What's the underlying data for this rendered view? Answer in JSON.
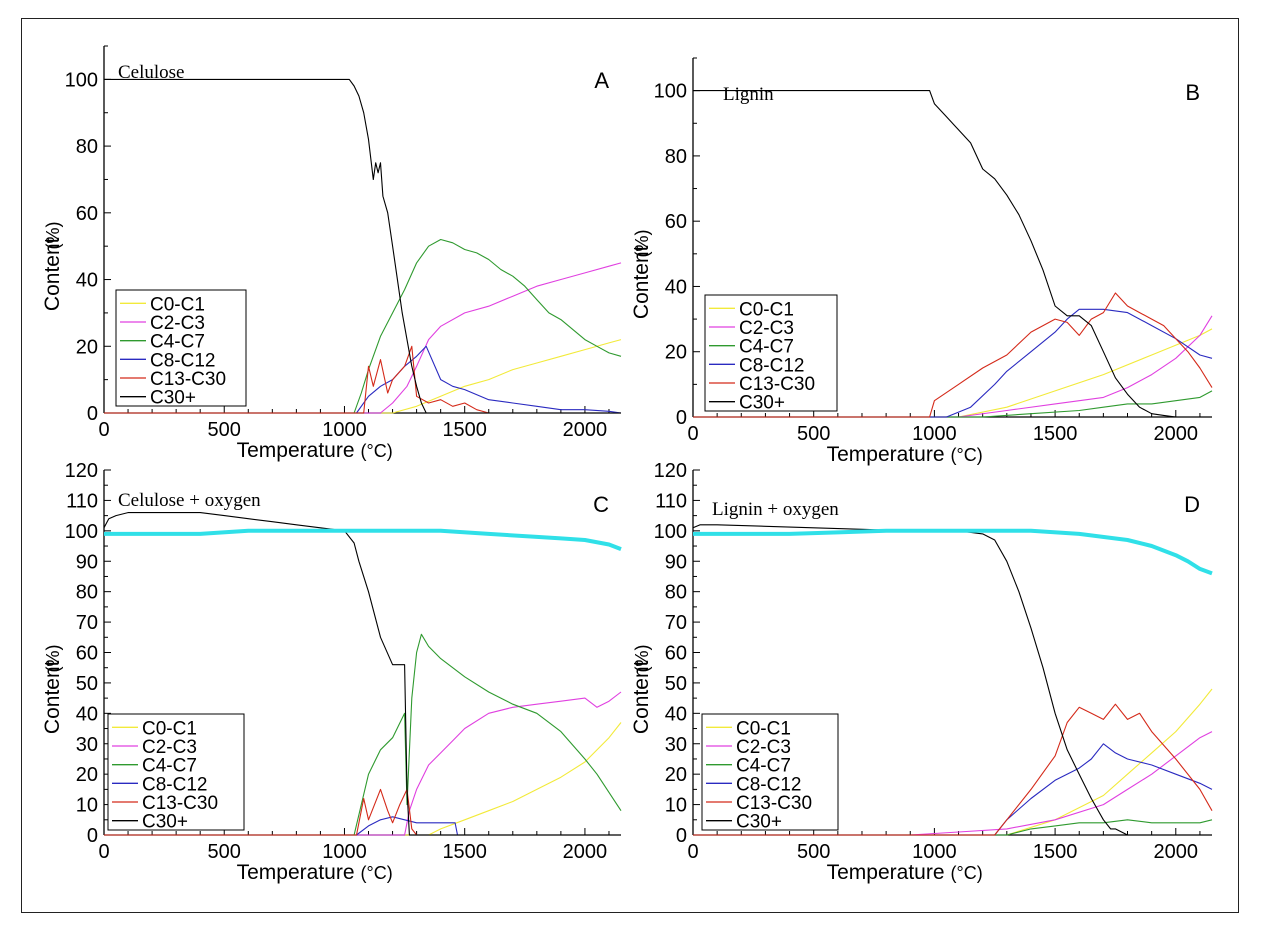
{
  "colors": {
    "C0-C1": "#f2ea3a",
    "C2-C3": "#e040e0",
    "C4-C7": "#2f9a2f",
    "C8-C12": "#2a2ac0",
    "C13-C30": "#d42a1a",
    "C30+": "#000000",
    "oxygen": "#30e0e8"
  },
  "chart_data": [
    {
      "panel": "A",
      "type": "line",
      "title": "Celulose",
      "xlabel": "Temperature",
      "xunit": "(°C)",
      "ylabel": "Content",
      "yunit": "(%)",
      "xlim": [
        0,
        2150
      ],
      "ylim": [
        0,
        110
      ],
      "xticks": [
        0,
        500,
        1000,
        1500,
        2000
      ],
      "yticks": [
        0,
        20,
        40,
        60,
        80,
        100
      ],
      "legend": "bottom-left",
      "series": [
        {
          "name": "C0-C1",
          "x": [
            0,
            1200,
            1300,
            1400,
            1500,
            1600,
            1700,
            1800,
            1900,
            2000,
            2100,
            2150
          ],
          "y": [
            0,
            0,
            2,
            5,
            8,
            10,
            13,
            15,
            17,
            19,
            21,
            22
          ]
        },
        {
          "name": "C2-C3",
          "x": [
            0,
            1150,
            1200,
            1260,
            1300,
            1350,
            1400,
            1500,
            1600,
            1700,
            1800,
            1900,
            2000,
            2100,
            2150
          ],
          "y": [
            0,
            0,
            3,
            8,
            14,
            22,
            26,
            30,
            32,
            35,
            38,
            40,
            42,
            44,
            45
          ]
        },
        {
          "name": "C4-C7",
          "x": [
            0,
            1040,
            1070,
            1100,
            1150,
            1200,
            1250,
            1300,
            1350,
            1400,
            1450,
            1500,
            1550,
            1600,
            1650,
            1700,
            1750,
            1800,
            1850,
            1900,
            1950,
            2000,
            2050,
            2100,
            2150
          ],
          "y": [
            0,
            0,
            6,
            13,
            23,
            30,
            37,
            45,
            50,
            52,
            51,
            49,
            48,
            46,
            43,
            41,
            38,
            34,
            30,
            28,
            25,
            22,
            20,
            18,
            17
          ]
        },
        {
          "name": "C8-C12",
          "x": [
            0,
            1050,
            1100,
            1150,
            1200,
            1250,
            1300,
            1340,
            1400,
            1450,
            1500,
            1600,
            1700,
            1800,
            1900,
            2000,
            2100,
            2150
          ],
          "y": [
            0,
            0,
            5,
            8,
            10,
            14,
            17,
            20,
            10,
            8,
            7,
            4,
            3,
            2,
            1,
            1,
            0.5,
            0
          ]
        },
        {
          "name": "C13-C30",
          "x": [
            0,
            1080,
            1100,
            1120,
            1150,
            1180,
            1200,
            1250,
            1280,
            1300,
            1350,
            1400,
            1450,
            1500,
            1550,
            1600,
            2150
          ],
          "y": [
            0,
            0,
            14,
            8,
            16,
            6,
            10,
            14,
            20,
            5,
            3,
            4,
            2,
            3,
            1,
            0,
            0
          ]
        },
        {
          "name": "C30+",
          "x": [
            0,
            1020,
            1040,
            1060,
            1080,
            1100,
            1120,
            1130,
            1140,
            1150,
            1160,
            1180,
            1200,
            1220,
            1240,
            1260,
            1280,
            1300,
            1320,
            1340,
            2150
          ],
          "y": [
            100,
            100,
            98,
            95,
            90,
            82,
            70,
            75,
            72,
            75,
            65,
            60,
            50,
            40,
            30,
            22,
            14,
            8,
            3,
            0,
            0
          ]
        }
      ]
    },
    {
      "panel": "B",
      "type": "line",
      "title": "Lignin",
      "xlabel": "Temperature",
      "xunit": "(°C)",
      "ylabel": "Content",
      "yunit": "(%)",
      "xlim": [
        0,
        2150
      ],
      "ylim": [
        0,
        110
      ],
      "xticks": [
        0,
        500,
        1000,
        1500,
        2000
      ],
      "yticks": [
        0,
        20,
        40,
        60,
        80,
        100
      ],
      "legend": "bottom-left",
      "series": [
        {
          "name": "C0-C1",
          "x": [
            0,
            1100,
            1300,
            1500,
            1700,
            1900,
            2100,
            2150
          ],
          "y": [
            0,
            0,
            3,
            8,
            13,
            19,
            25,
            27
          ]
        },
        {
          "name": "C2-C3",
          "x": [
            0,
            1100,
            1300,
            1500,
            1700,
            1800,
            1900,
            2000,
            2100,
            2150
          ],
          "y": [
            0,
            0,
            2,
            4,
            6,
            9,
            13,
            18,
            25,
            31
          ]
        },
        {
          "name": "C4-C7",
          "x": [
            0,
            1200,
            1400,
            1600,
            1700,
            1800,
            1900,
            2000,
            2100,
            2150
          ],
          "y": [
            0,
            0,
            1,
            2,
            3,
            4,
            4,
            5,
            6,
            8
          ]
        },
        {
          "name": "C8-C12",
          "x": [
            0,
            1050,
            1150,
            1250,
            1300,
            1400,
            1500,
            1550,
            1600,
            1700,
            1800,
            1900,
            2000,
            2100,
            2150
          ],
          "y": [
            0,
            0,
            3,
            10,
            14,
            20,
            26,
            30,
            33,
            33,
            32,
            28,
            24,
            19,
            18
          ]
        },
        {
          "name": "C13-C30",
          "x": [
            0,
            980,
            1000,
            1100,
            1200,
            1300,
            1400,
            1500,
            1550,
            1600,
            1650,
            1700,
            1750,
            1800,
            1850,
            1900,
            1950,
            2000,
            2050,
            2100,
            2150
          ],
          "y": [
            0,
            0,
            5,
            10,
            15,
            19,
            26,
            30,
            29,
            25,
            30,
            32,
            38,
            34,
            32,
            30,
            28,
            24,
            20,
            15,
            9
          ]
        },
        {
          "name": "C30+",
          "x": [
            0,
            980,
            1000,
            1050,
            1100,
            1150,
            1200,
            1250,
            1300,
            1350,
            1400,
            1450,
            1500,
            1550,
            1600,
            1650,
            1700,
            1750,
            1800,
            1850,
            1900,
            1950,
            2000,
            2150
          ],
          "y": [
            100,
            100,
            96,
            92,
            88,
            84,
            76,
            73,
            68,
            62,
            54,
            45,
            34,
            31,
            31,
            28,
            20,
            12,
            7,
            3,
            1,
            0.5,
            0,
            0
          ]
        }
      ]
    },
    {
      "panel": "C",
      "type": "line",
      "title": "Celulose + oxygen",
      "xlabel": "Temperature",
      "xunit": "(°C)",
      "ylabel": "Content",
      "yunit": "(%)",
      "xlim": [
        0,
        2150
      ],
      "ylim": [
        0,
        120
      ],
      "xticks": [
        0,
        500,
        1000,
        1500,
        2000
      ],
      "yticks": [
        0,
        10,
        20,
        30,
        40,
        50,
        60,
        70,
        80,
        90,
        100,
        110,
        120
      ],
      "legend": "bottom-left",
      "series": [
        {
          "name": "C0-C1",
          "x": [
            0,
            1350,
            1400,
            1500,
            1600,
            1700,
            1800,
            1900,
            2000,
            2100,
            2150
          ],
          "y": [
            0,
            0,
            2,
            5,
            8,
            11,
            15,
            19,
            24,
            32,
            37
          ]
        },
        {
          "name": "C2-C3",
          "x": [
            0,
            1250,
            1270,
            1300,
            1350,
            1400,
            1450,
            1500,
            1600,
            1700,
            1800,
            1900,
            2000,
            2050,
            2100,
            2150
          ],
          "y": [
            0,
            0,
            8,
            15,
            23,
            27,
            31,
            35,
            40,
            42,
            43,
            44,
            45,
            42,
            44,
            47
          ]
        },
        {
          "name": "C4-C7",
          "x": [
            0,
            1040,
            1100,
            1150,
            1200,
            1250,
            1260,
            1280,
            1300,
            1320,
            1350,
            1400,
            1500,
            1600,
            1700,
            1800,
            1900,
            2000,
            2050,
            2100,
            2150
          ],
          "y": [
            0,
            0,
            20,
            28,
            32,
            40,
            10,
            45,
            60,
            66,
            62,
            58,
            52,
            47,
            43,
            40,
            34,
            25,
            20,
            14,
            8
          ]
        },
        {
          "name": "C8-C12",
          "x": [
            0,
            1050,
            1100,
            1150,
            1200,
            1250,
            1300,
            1350,
            1400,
            1460,
            1470,
            2150
          ],
          "y": [
            0,
            0,
            3,
            5,
            6,
            5,
            4,
            4,
            4,
            4,
            0,
            0
          ]
        },
        {
          "name": "C13-C30",
          "x": [
            0,
            1050,
            1080,
            1100,
            1150,
            1180,
            1200,
            1230,
            1260,
            1280,
            1300,
            2150
          ],
          "y": [
            0,
            0,
            12,
            5,
            15,
            8,
            4,
            10,
            15,
            2,
            0,
            0
          ]
        },
        {
          "name": "C30+",
          "x": [
            0,
            20,
            50,
            100,
            200,
            300,
            400,
            500,
            600,
            700,
            800,
            900,
            1000,
            1040,
            1060,
            1100,
            1150,
            1200,
            1250,
            1260,
            1270,
            2150
          ],
          "y": [
            101,
            104,
            105,
            106,
            106,
            106,
            106,
            105,
            104,
            103,
            102,
            101,
            100,
            96,
            90,
            80,
            65,
            56,
            56,
            15,
            0,
            0
          ]
        },
        {
          "name": "oxygen",
          "legend": false,
          "x": [
            0,
            200,
            400,
            600,
            800,
            1000,
            1200,
            1400,
            1600,
            1800,
            1900,
            2000,
            2100,
            2150
          ],
          "y": [
            99,
            99,
            99,
            100,
            100,
            100,
            100,
            100,
            99,
            98,
            97.5,
            97,
            95.5,
            94
          ]
        }
      ]
    },
    {
      "panel": "D",
      "type": "line",
      "title": "Lignin + oxygen",
      "xlabel": "Temperature",
      "xunit": "(°C)",
      "ylabel": "Content",
      "yunit": "(%)",
      "xlim": [
        0,
        2150
      ],
      "ylim": [
        0,
        120
      ],
      "xticks": [
        0,
        500,
        1000,
        1500,
        2000
      ],
      "yticks": [
        0,
        10,
        20,
        30,
        40,
        50,
        60,
        70,
        80,
        90,
        100,
        110,
        120
      ],
      "legend": "bottom-left",
      "series": [
        {
          "name": "C0-C1",
          "x": [
            0,
            1300,
            1500,
            1700,
            1800,
            1900,
            2000,
            2100,
            2150
          ],
          "y": [
            0,
            0,
            5,
            13,
            20,
            27,
            34,
            43,
            48
          ]
        },
        {
          "name": "C2-C3",
          "x": [
            0,
            900,
            1100,
            1300,
            1500,
            1700,
            1800,
            1900,
            2000,
            2100,
            2150
          ],
          "y": [
            0,
            0,
            1,
            2,
            5,
            10,
            15,
            20,
            26,
            32,
            34
          ]
        },
        {
          "name": "C4-C7",
          "x": [
            0,
            1300,
            1400,
            1500,
            1600,
            1700,
            1800,
            1900,
            2000,
            2100,
            2150
          ],
          "y": [
            0,
            0,
            2,
            3,
            4,
            4,
            5,
            4,
            4,
            4,
            5
          ]
        },
        {
          "name": "C8-C12",
          "x": [
            0,
            1250,
            1300,
            1400,
            1500,
            1600,
            1650,
            1700,
            1750,
            1800,
            1900,
            2000,
            2100,
            2150
          ],
          "y": [
            0,
            0,
            5,
            12,
            18,
            22,
            25,
            30,
            27,
            25,
            23,
            20,
            17,
            15
          ]
        },
        {
          "name": "C13-C30",
          "x": [
            0,
            1250,
            1300,
            1400,
            1500,
            1550,
            1600,
            1650,
            1700,
            1750,
            1800,
            1850,
            1900,
            2000,
            2100,
            2150
          ],
          "y": [
            0,
            0,
            5,
            15,
            26,
            37,
            42,
            40,
            38,
            43,
            38,
            40,
            34,
            25,
            15,
            8
          ]
        },
        {
          "name": "C30+",
          "x": [
            0,
            30,
            100,
            300,
            500,
            700,
            900,
            1100,
            1200,
            1250,
            1300,
            1350,
            1400,
            1450,
            1500,
            1550,
            1600,
            1650,
            1700,
            1730,
            1750,
            1800,
            2150
          ],
          "y": [
            101,
            102,
            102,
            101.5,
            101,
            100.5,
            100,
            100,
            99,
            97,
            90,
            80,
            68,
            55,
            40,
            28,
            20,
            12,
            5,
            2,
            2,
            0,
            0
          ]
        },
        {
          "name": "oxygen",
          "legend": false,
          "x": [
            0,
            200,
            400,
            600,
            800,
            1000,
            1200,
            1400,
            1600,
            1800,
            1900,
            2000,
            2050,
            2100,
            2150
          ],
          "y": [
            99,
            99,
            99,
            99.5,
            100,
            100,
            100,
            100,
            99,
            97,
            95,
            92,
            90,
            87.5,
            86
          ]
        }
      ]
    }
  ]
}
